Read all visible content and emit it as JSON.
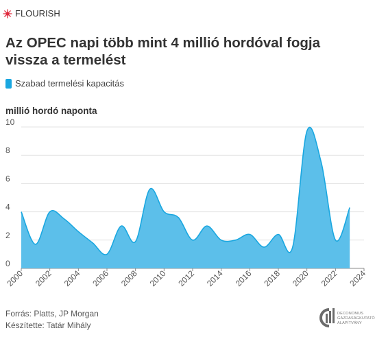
{
  "brand": {
    "name": "FLOURISH",
    "icon": "flourish-logo-icon",
    "color": "#e0293d"
  },
  "title": "Az OPEC napi több mint 4 millió hordóval fogja vissza a termelést",
  "footer": {
    "source": "Forrás: Platts, JP Morgan",
    "author": "Készítette: Tatár Mihály"
  },
  "logo": {
    "line1": "DECONOMUS",
    "line2": "GAZDASÁGKUTATÓ",
    "line3": "ALAPÍTVÁNY"
  },
  "chart_data": {
    "type": "area",
    "ylabel": "millió hordó naponta",
    "xlabel": "",
    "xlim": [
      2000,
      2024
    ],
    "ylim": [
      0,
      10
    ],
    "xticks": [
      2000,
      2002,
      2004,
      2006,
      2008,
      2010,
      2012,
      2014,
      2016,
      2018,
      2020,
      2022,
      2024
    ],
    "yticks": [
      0,
      2,
      4,
      6,
      8,
      10
    ],
    "grid": "horizontal",
    "legend_position": "top-left",
    "series": [
      {
        "name": "Szabad termelési kapacitás",
        "color": "#1aa7e0",
        "fill": "#5cbfea",
        "points": [
          [
            2000,
            4.0
          ],
          [
            2001,
            1.7
          ],
          [
            2002,
            4.0
          ],
          [
            2003,
            3.5
          ],
          [
            2004,
            2.6
          ],
          [
            2005,
            1.8
          ],
          [
            2006,
            1.0
          ],
          [
            2007,
            3.0
          ],
          [
            2008,
            1.9
          ],
          [
            2009,
            5.6
          ],
          [
            2010,
            4.0
          ],
          [
            2011,
            3.6
          ],
          [
            2012,
            2.0
          ],
          [
            2013,
            3.0
          ],
          [
            2014,
            2.0
          ],
          [
            2015,
            2.0
          ],
          [
            2016,
            2.4
          ],
          [
            2017,
            1.5
          ],
          [
            2018,
            2.4
          ],
          [
            2019,
            1.5
          ],
          [
            2020,
            9.7
          ],
          [
            2021,
            7.5
          ],
          [
            2022,
            2.0
          ],
          [
            2023,
            4.3
          ]
        ]
      }
    ]
  }
}
